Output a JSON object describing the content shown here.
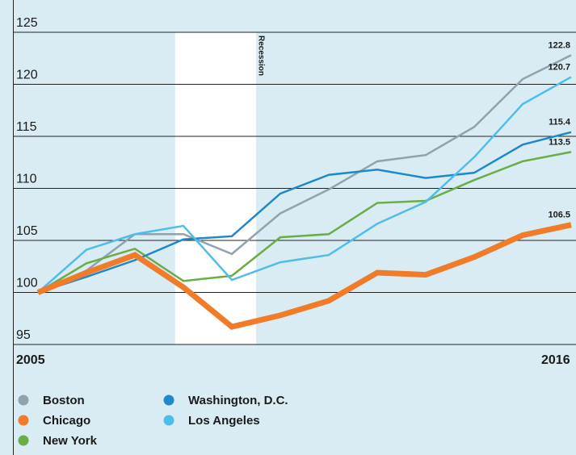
{
  "chart_data": {
    "type": "line",
    "x": [
      2005,
      2006,
      2007,
      2008,
      2009,
      2010,
      2011,
      2012,
      2013,
      2014,
      2015,
      2016
    ],
    "xlim": [
      2005,
      2016
    ],
    "xticks": [
      2005,
      2016
    ],
    "ylim": [
      95,
      125
    ],
    "yticks": [
      95,
      100,
      105,
      110,
      115,
      120,
      125
    ],
    "grid": true,
    "recession": {
      "label": "Recession",
      "start": 2007.83,
      "end": 2009.5
    },
    "series": [
      {
        "name": "Boston",
        "color": "#8fa3ae",
        "width": 2.5,
        "values": [
          100,
          102.1,
          105.6,
          105.6,
          103.7,
          107.6,
          109.9,
          112.6,
          113.2,
          115.9,
          120.5,
          122.8
        ],
        "value_labels": [
          null,
          null,
          null,
          null,
          null,
          null,
          null,
          null,
          null,
          null,
          null,
          "122.8"
        ]
      },
      {
        "name": "Chicago",
        "color": "#f07c2a",
        "width": 7,
        "values": [
          100,
          101.9,
          103.6,
          100.5,
          96.7,
          97.8,
          99.2,
          101.9,
          101.7,
          103.4,
          105.5,
          106.5
        ],
        "value_labels": [
          null,
          null,
          null,
          null,
          null,
          null,
          null,
          null,
          null,
          null,
          null,
          "106.5"
        ]
      },
      {
        "name": "New York",
        "color": "#6aad45",
        "width": 2.5,
        "values": [
          100,
          102.8,
          104.2,
          101.1,
          101.6,
          105.3,
          105.6,
          108.6,
          108.8,
          110.8,
          112.6,
          113.5
        ],
        "value_labels": [
          null,
          null,
          null,
          null,
          null,
          null,
          null,
          null,
          null,
          null,
          null,
          "113.5"
        ]
      },
      {
        "name": "Washington, D.C.",
        "color": "#1f88c9",
        "width": 2.5,
        "values": [
          100,
          101.5,
          103.1,
          105.1,
          105.4,
          109.5,
          111.3,
          111.8,
          111.0,
          111.5,
          114.2,
          115.4
        ],
        "value_labels": [
          null,
          null,
          null,
          null,
          null,
          null,
          null,
          null,
          null,
          null,
          null,
          "115.4"
        ]
      },
      {
        "name": "Los Angeles",
        "color": "#4fbdea",
        "width": 2.5,
        "values": [
          100,
          104.1,
          105.6,
          106.4,
          101.2,
          102.9,
          103.6,
          106.6,
          108.7,
          113.0,
          118.1,
          120.7
        ],
        "value_labels": [
          null,
          null,
          null,
          null,
          null,
          null,
          null,
          null,
          null,
          null,
          null,
          "120.7"
        ]
      }
    ]
  }
}
